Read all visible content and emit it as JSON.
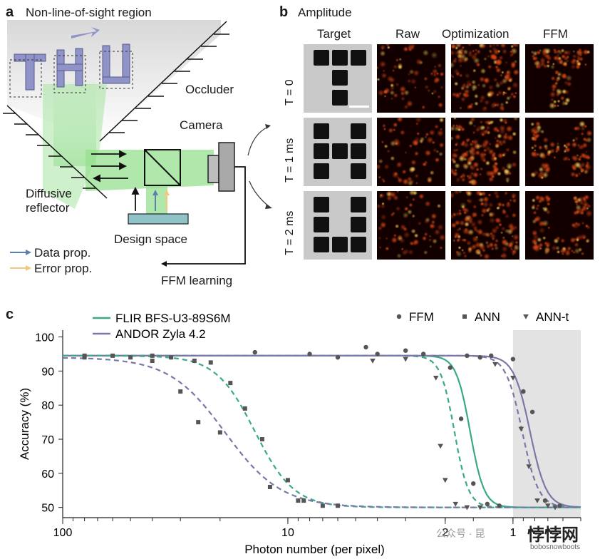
{
  "panel_a": {
    "letter": "a",
    "title": "Non-line-of-sight region",
    "scene_text": "THU",
    "occluder": "Occluder",
    "camera": "Camera",
    "diffusive_reflector": "Diffusive\nreflector",
    "design_space": "Design space",
    "ffm_learning": "FFM learning",
    "legend": [
      {
        "label": "Data prop.",
        "color": "#5b7fae"
      },
      {
        "label": "Error prop.",
        "color": "#f2c87e"
      }
    ]
  },
  "panel_b": {
    "letter": "b",
    "title": "Amplitude",
    "columns": [
      "Target",
      "Raw",
      "Optimization",
      "FFM"
    ],
    "rows": [
      "T = 0",
      "T = 1 ms",
      "T = 2 ms"
    ]
  },
  "panel_c": {
    "letter": "c",
    "chart_data": {
      "type": "scatter",
      "xlabel": "Photon number (per pixel)",
      "ylabel": "Accuracy (%)",
      "x_scale": "log-reversed",
      "xlim": [
        100,
        0.5
      ],
      "ylim": [
        47,
        102
      ],
      "yticks": [
        50,
        60,
        70,
        80,
        90,
        100
      ],
      "xtick_labels": [
        "100",
        "10",
        "2",
        "1"
      ],
      "xtick_values": [
        100,
        10,
        2,
        1
      ],
      "shaded_region_x": [
        1,
        0.5
      ],
      "marker_legend": [
        {
          "label": "FFM",
          "marker": "circle"
        },
        {
          "label": "ANN",
          "marker": "square"
        },
        {
          "label": "ANN-t",
          "marker": "triangle"
        }
      ],
      "series": [
        {
          "name": "FLIR BFS-U3-89S6M",
          "color": "#3aa98a",
          "fit_ffm": {
            "top": 94.5,
            "mid": 1.55,
            "slope": 14
          },
          "fit_ann_t": {
            "top": 94.5,
            "mid": 1.82,
            "slope": 14
          },
          "points": [
            {
              "x": 14.0,
              "y": 95.5,
              "m": "circle"
            },
            {
              "x": 8.0,
              "y": 95.0,
              "m": "circle"
            },
            {
              "x": 6.0,
              "y": 94.0,
              "m": "circle"
            },
            {
              "x": 4.5,
              "y": 97.0,
              "m": "circle"
            },
            {
              "x": 4.0,
              "y": 95.0,
              "m": "circle"
            },
            {
              "x": 3.0,
              "y": 96.0,
              "m": "circle"
            },
            {
              "x": 2.5,
              "y": 95.0,
              "m": "circle"
            },
            {
              "x": 1.9,
              "y": 91.0,
              "m": "circle"
            },
            {
              "x": 1.7,
              "y": 76.0,
              "m": "circle"
            },
            {
              "x": 1.5,
              "y": 57.0,
              "m": "circle"
            },
            {
              "x": 1.3,
              "y": 51.0,
              "m": "circle"
            },
            {
              "x": 1.15,
              "y": 50.5,
              "m": "circle"
            },
            {
              "x": 4.2,
              "y": 93.0,
              "m": "triangle"
            },
            {
              "x": 3.0,
              "y": 93.5,
              "m": "triangle"
            },
            {
              "x": 2.2,
              "y": 88.0,
              "m": "triangle"
            },
            {
              "x": 2.1,
              "y": 68.0,
              "m": "triangle"
            },
            {
              "x": 2.0,
              "y": 58.0,
              "m": "triangle"
            },
            {
              "x": 1.8,
              "y": 51.0,
              "m": "triangle"
            },
            {
              "x": 1.6,
              "y": 50.0,
              "m": "triangle"
            },
            {
              "x": 1.4,
              "y": 50.0,
              "m": "triangle"
            },
            {
              "x": 80.0,
              "y": 94.5,
              "m": "square"
            },
            {
              "x": 60.0,
              "y": 94.5,
              "m": "square"
            },
            {
              "x": 50.0,
              "y": 94.0,
              "m": "square"
            },
            {
              "x": 40.0,
              "y": 94.5,
              "m": "square"
            },
            {
              "x": 33.0,
              "y": 94.0,
              "m": "square"
            },
            {
              "x": 26.0,
              "y": 93.0,
              "m": "square"
            },
            {
              "x": 22.0,
              "y": 92.5,
              "m": "square"
            },
            {
              "x": 18.0,
              "y": 86.5,
              "m": "square"
            },
            {
              "x": 15.5,
              "y": 79.0,
              "m": "square"
            },
            {
              "x": 13.0,
              "y": 70.0,
              "m": "square"
            },
            {
              "x": 10.0,
              "y": 58.0,
              "m": "square"
            },
            {
              "x": 8.5,
              "y": 52.0,
              "m": "square"
            },
            {
              "x": 6.0,
              "y": 50.5,
              "m": "square"
            }
          ]
        },
        {
          "name": "ANDOR Zyla 4.2",
          "color": "#7b78a8",
          "fit_ffm": {
            "top": 94.5,
            "mid": 0.84,
            "slope": 12
          },
          "fit_ann_t": {
            "top": 94.5,
            "mid": 0.91,
            "slope": 12
          },
          "points": [
            {
              "x": 1.6,
              "y": 94.5,
              "m": "circle"
            },
            {
              "x": 1.4,
              "y": 94.0,
              "m": "circle"
            },
            {
              "x": 1.25,
              "y": 94.5,
              "m": "circle"
            },
            {
              "x": 1.0,
              "y": 93.5,
              "m": "circle"
            },
            {
              "x": 0.9,
              "y": 84.0,
              "m": "circle"
            },
            {
              "x": 0.82,
              "y": 78.0,
              "m": "circle"
            },
            {
              "x": 0.72,
              "y": 52.0,
              "m": "circle"
            },
            {
              "x": 0.62,
              "y": 50.5,
              "m": "circle"
            },
            {
              "x": 1.2,
              "y": 92.0,
              "m": "triangle"
            },
            {
              "x": 1.0,
              "y": 88.0,
              "m": "triangle"
            },
            {
              "x": 0.92,
              "y": 73.0,
              "m": "triangle"
            },
            {
              "x": 0.85,
              "y": 62.0,
              "m": "triangle"
            },
            {
              "x": 0.78,
              "y": 52.0,
              "m": "triangle"
            },
            {
              "x": 0.7,
              "y": 50.5,
              "m": "triangle"
            },
            {
              "x": 0.65,
              "y": 50.0,
              "m": "triangle"
            },
            {
              "x": 80.0,
              "y": 94.0,
              "m": "square"
            },
            {
              "x": 40.0,
              "y": 93.0,
              "m": "square"
            },
            {
              "x": 30.0,
              "y": 84.0,
              "m": "square"
            },
            {
              "x": 25.0,
              "y": 75.0,
              "m": "square"
            },
            {
              "x": 20.0,
              "y": 72.0,
              "m": "square"
            },
            {
              "x": 12.0,
              "y": 56.0,
              "m": "square"
            },
            {
              "x": 9.0,
              "y": 52.0,
              "m": "square"
            },
            {
              "x": 7.0,
              "y": 50.5,
              "m": "square"
            }
          ]
        }
      ],
      "fit_ann": [
        {
          "series": 0,
          "top": 94.5,
          "mid": 14.0,
          "slope": 5
        },
        {
          "series": 1,
          "top": 94.0,
          "mid": 19.0,
          "slope": 3.5
        }
      ]
    }
  },
  "watermark": {
    "line1": "公众号 · 昆",
    "brand": "悖悖网",
    "site": "bobosnowboots"
  }
}
